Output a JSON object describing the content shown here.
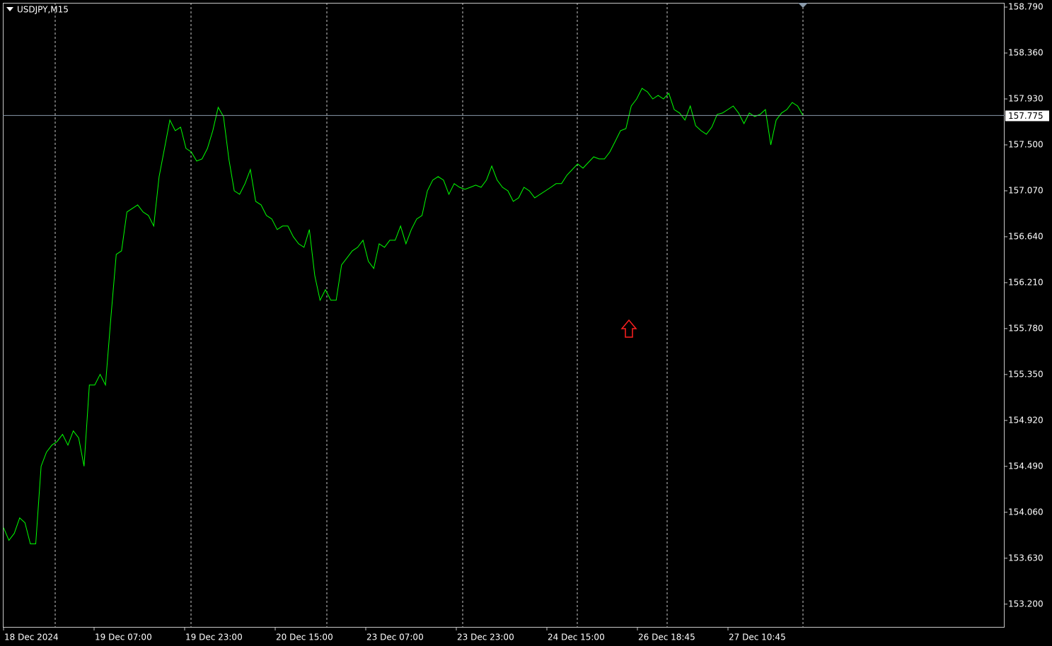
{
  "chart_data": {
    "type": "line",
    "title": "USDJPY,M15",
    "color": "#00ff00",
    "x_labels": [
      "18 Dec 2024",
      "19 Dec 07:00",
      "19 Dec 23:00",
      "20 Dec 15:00",
      "23 Dec 07:00",
      "23 Dec 23:00",
      "24 Dec 15:00",
      "26 Dec 18:45",
      "27 Dec 10:45"
    ],
    "values": [
      153.916,
      153.797,
      153.863,
      154.008,
      153.962,
      153.764,
      153.764,
      154.491,
      154.623,
      154.689,
      154.723,
      154.789,
      154.689,
      154.822,
      154.756,
      154.491,
      155.252,
      155.252,
      155.351,
      155.252,
      155.88,
      156.475,
      156.508,
      156.872,
      156.905,
      156.938,
      156.872,
      156.839,
      156.74,
      157.203,
      157.467,
      157.732,
      157.633,
      157.666,
      157.467,
      157.434,
      157.348,
      157.368,
      157.467,
      157.633,
      157.851,
      157.765,
      157.368,
      157.07,
      157.037,
      157.137,
      157.269,
      156.971,
      156.938,
      156.839,
      156.806,
      156.707,
      156.74,
      156.74,
      156.641,
      156.574,
      156.541,
      156.707,
      156.277,
      156.045,
      156.144,
      156.045,
      156.045,
      156.376,
      156.442,
      156.508,
      156.541,
      156.607,
      156.409,
      156.343,
      156.574,
      156.541,
      156.607,
      156.607,
      156.74,
      156.574,
      156.707,
      156.806,
      156.839,
      157.07,
      157.17,
      157.203,
      157.17,
      157.037,
      157.137,
      157.103,
      157.084,
      157.103,
      157.123,
      157.103,
      157.17,
      157.302,
      157.17,
      157.103,
      157.07,
      156.971,
      157.004,
      157.103,
      157.07,
      157.004,
      157.037,
      157.07,
      157.103,
      157.137,
      157.137,
      157.216,
      157.269,
      157.322,
      157.282,
      157.335,
      157.388,
      157.368,
      157.368,
      157.434,
      157.533,
      157.633,
      157.652,
      157.864,
      157.93,
      158.029,
      157.996,
      157.93,
      157.963,
      157.93,
      157.983,
      157.831,
      157.798,
      157.732,
      157.864,
      157.679,
      157.633,
      157.6,
      157.666,
      157.785,
      157.798,
      157.831,
      157.864,
      157.798,
      157.699,
      157.798,
      157.765,
      157.785,
      157.831,
      157.5,
      157.732,
      157.798,
      157.831,
      157.897,
      157.864,
      157.775
    ],
    "ylim": [
      152.98,
      158.83
    ],
    "yticks": [
      {
        "value": 158.79,
        "label": "158.790"
      },
      {
        "value": 158.36,
        "label": "158.360"
      },
      {
        "value": 157.93,
        "label": "157.930"
      },
      {
        "value": 157.5,
        "label": "157.500"
      },
      {
        "value": 157.07,
        "label": "157.070"
      },
      {
        "value": 156.64,
        "label": "156.640"
      },
      {
        "value": 156.21,
        "label": "156.210"
      },
      {
        "value": 155.78,
        "label": "155.780"
      },
      {
        "value": 155.35,
        "label": "155.350"
      },
      {
        "value": 154.92,
        "label": "154.920"
      },
      {
        "value": 154.49,
        "label": "154.490"
      },
      {
        "value": 154.06,
        "label": "154.060"
      },
      {
        "value": 153.63,
        "label": "153.630"
      },
      {
        "value": 153.2,
        "label": "153.200"
      }
    ],
    "current_price": {
      "value": 157.775,
      "label": "157.775"
    }
  }
}
